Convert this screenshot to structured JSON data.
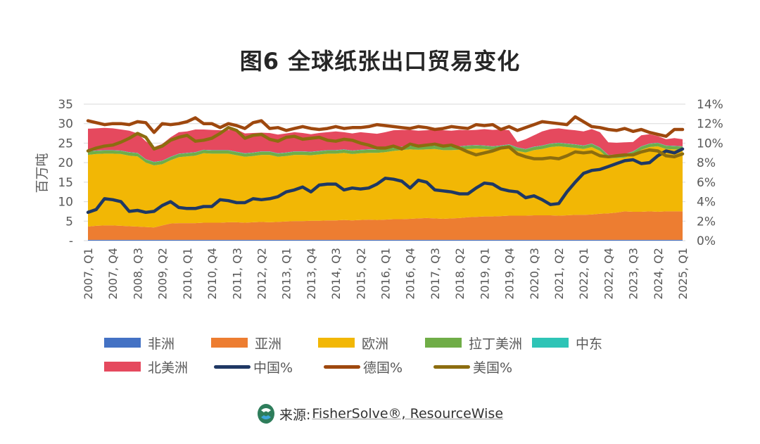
{
  "chart_data": {
    "type": "area",
    "title": "图6  全球纸张出口贸易变化",
    "ylabel": "百万吨",
    "y2label": "",
    "ylim": [
      0,
      35
    ],
    "y2lim": [
      0,
      14
    ],
    "yticks": [
      "-",
      "5",
      "10",
      "15",
      "20",
      "25",
      "30",
      "35"
    ],
    "y2ticks": [
      "0%",
      "2%",
      "4%",
      "6%",
      "8%",
      "10%",
      "12%",
      "14%"
    ],
    "grid": true,
    "legend_position": "bottom",
    "xtick_labels": [
      "2007, Q1",
      "2007, Q4",
      "2008, Q3",
      "2009, Q2",
      "2010, Q1",
      "2010, Q4",
      "2011, Q3",
      "2012, Q2",
      "2013, Q1",
      "2013, Q4",
      "2014, Q3",
      "2015, Q2",
      "2016, Q1",
      "2016, Q4",
      "2017, Q3",
      "2018, Q2",
      "2019, Q1",
      "2019, Q4",
      "2020, Q3",
      "2021, Q2",
      "2022, Q1",
      "2022, Q4",
      "2023, Q3",
      "2024, Q2",
      "2025, Q1"
    ],
    "x_start": "2007, Q1",
    "x_end": "2025, Q1",
    "x_step": "quarter",
    "stacked_series": [
      {
        "name": "非洲",
        "color": "#4472C4",
        "values": [
          0.2,
          0.2,
          0.2,
          0.2,
          0.2,
          0.2,
          0.2,
          0.2,
          0.2,
          0.2,
          0.2,
          0.2,
          0.2,
          0.2,
          0.2,
          0.2,
          0.2,
          0.2,
          0.2,
          0.2,
          0.2,
          0.2,
          0.2,
          0.2,
          0.2,
          0.2,
          0.2,
          0.2,
          0.2,
          0.2,
          0.2,
          0.2,
          0.2,
          0.2,
          0.2,
          0.2,
          0.2,
          0.2,
          0.2,
          0.2,
          0.2,
          0.2,
          0.2,
          0.2,
          0.2,
          0.2,
          0.2,
          0.2,
          0.2,
          0.2,
          0.2,
          0.2,
          0.2,
          0.2,
          0.2,
          0.2,
          0.2,
          0.2,
          0.2,
          0.2,
          0.2,
          0.2,
          0.2,
          0.2,
          0.2,
          0.2,
          0.2,
          0.2,
          0.2,
          0.2,
          0.2,
          0.2,
          0.2
        ]
      },
      {
        "name": "亚洲",
        "color": "#ED7D31",
        "values": [
          3.4,
          3.6,
          3.7,
          3.7,
          3.6,
          3.5,
          3.4,
          3.3,
          3.2,
          3.7,
          4.2,
          4.3,
          4.3,
          4.3,
          4.4,
          4.4,
          4.4,
          4.5,
          4.5,
          4.4,
          4.5,
          4.6,
          4.5,
          4.6,
          4.7,
          4.8,
          4.8,
          4.9,
          4.9,
          5.0,
          5.0,
          5.1,
          5.0,
          5.1,
          5.2,
          5.1,
          5.2,
          5.3,
          5.3,
          5.4,
          5.5,
          5.6,
          5.5,
          5.4,
          5.5,
          5.6,
          5.8,
          5.9,
          6.0,
          6.0,
          6.1,
          6.2,
          6.2,
          6.2,
          6.3,
          6.3,
          6.3,
          6.2,
          6.3,
          6.4,
          6.4,
          6.5,
          6.7,
          6.8,
          7.0,
          7.3,
          7.2,
          7.2,
          7.3,
          7.2,
          7.3,
          7.3,
          7.3
        ]
      },
      {
        "name": "欧洲",
        "color": "#F2B705",
        "values": [
          18.4,
          18.4,
          18.4,
          18.4,
          18.4,
          18.1,
          18.0,
          16.5,
          15.9,
          15.7,
          16.2,
          16.9,
          17.1,
          17.3,
          17.8,
          17.7,
          17.7,
          17.6,
          17.2,
          16.9,
          17.0,
          17.2,
          17.3,
          16.7,
          16.8,
          17.0,
          17.0,
          16.8,
          17.0,
          17.1,
          17.1,
          17.2,
          17.0,
          17.1,
          17.1,
          17.2,
          17.3,
          17.5,
          17.7,
          17.8,
          17.6,
          17.6,
          17.8,
          17.6,
          17.5,
          17.5,
          17.5,
          17.5,
          17.3,
          17.1,
          17.2,
          17.4,
          16.6,
          16.2,
          16.7,
          17.0,
          17.5,
          17.8,
          17.5,
          17.2,
          16.9,
          17.3,
          16.1,
          14.1,
          14.0,
          13.8,
          14.6,
          15.9,
          16.5,
          16.8,
          16.0,
          15.9,
          15.8
        ]
      },
      {
        "name": "拉丁美洲",
        "color": "#70AD47",
        "values": [
          0.8,
          0.8,
          0.8,
          0.8,
          0.8,
          0.8,
          0.8,
          0.8,
          0.8,
          0.8,
          0.8,
          0.8,
          0.8,
          0.8,
          0.8,
          0.8,
          0.8,
          0.8,
          0.8,
          0.8,
          0.8,
          0.8,
          0.8,
          0.8,
          0.8,
          0.8,
          0.8,
          0.8,
          0.8,
          0.8,
          0.8,
          0.8,
          0.8,
          0.8,
          0.8,
          0.8,
          0.8,
          0.8,
          0.8,
          0.8,
          0.8,
          0.8,
          0.8,
          0.8,
          0.8,
          0.8,
          0.8,
          0.8,
          0.8,
          0.8,
          0.8,
          0.8,
          0.8,
          0.8,
          0.8,
          0.8,
          0.8,
          0.8,
          0.8,
          0.8,
          0.8,
          0.8,
          0.8,
          0.8,
          0.8,
          0.8,
          0.8,
          0.8,
          0.8,
          0.8,
          0.8,
          0.8,
          0.8
        ]
      },
      {
        "name": "中东",
        "color": "#2EC4B6",
        "values": [
          0.1,
          0.1,
          0.1,
          0.1,
          0.1,
          0.1,
          0.1,
          0.1,
          0.1,
          0.1,
          0.1,
          0.1,
          0.1,
          0.1,
          0.1,
          0.1,
          0.1,
          0.1,
          0.1,
          0.1,
          0.1,
          0.1,
          0.1,
          0.1,
          0.1,
          0.1,
          0.1,
          0.1,
          0.1,
          0.1,
          0.1,
          0.1,
          0.1,
          0.1,
          0.1,
          0.1,
          0.1,
          0.1,
          0.1,
          0.1,
          0.1,
          0.1,
          0.1,
          0.1,
          0.1,
          0.1,
          0.1,
          0.1,
          0.1,
          0.1,
          0.1,
          0.1,
          0.1,
          0.1,
          0.1,
          0.1,
          0.1,
          0.1,
          0.1,
          0.1,
          0.1,
          0.1,
          0.1,
          0.1,
          0.1,
          0.1,
          0.1,
          0.1,
          0.1,
          0.1,
          0.1,
          0.1,
          0.1
        ]
      },
      {
        "name": "北美洲",
        "color": "#E5495E",
        "values": [
          5.8,
          5.7,
          5.7,
          5.6,
          5.4,
          5.5,
          5.0,
          4.6,
          3.8,
          4.3,
          5.0,
          5.5,
          5.5,
          5.8,
          5.2,
          5.2,
          5.1,
          5.2,
          5.7,
          5.1,
          5.0,
          4.8,
          4.7,
          4.8,
          4.9,
          4.9,
          4.7,
          4.5,
          4.6,
          4.6,
          4.8,
          4.4,
          4.4,
          4.5,
          4.2,
          4.0,
          4.2,
          4.4,
          4.3,
          4.1,
          4.0,
          4.0,
          4.1,
          4.2,
          4.1,
          4.2,
          3.9,
          3.9,
          4.2,
          4.2,
          4.1,
          3.6,
          1.4,
          2.5,
          2.9,
          3.6,
          3.7,
          3.7,
          3.6,
          3.6,
          3.6,
          3.7,
          3.9,
          3.2,
          3.0,
          3.0,
          2.4,
          2.8,
          2.4,
          1.7,
          1.6,
          2.0,
          1.8
        ]
      }
    ],
    "line_series": [
      {
        "name": "中国%",
        "color": "#1F3864",
        "axis": "right",
        "values": [
          2.9,
          3.2,
          4.3,
          4.2,
          4.0,
          3.0,
          3.1,
          2.9,
          3.0,
          3.6,
          4.0,
          3.4,
          3.3,
          3.3,
          3.5,
          3.5,
          4.2,
          4.1,
          3.9,
          3.9,
          4.3,
          4.2,
          4.3,
          4.5,
          5.0,
          5.2,
          5.5,
          5.0,
          5.7,
          5.8,
          5.8,
          5.2,
          5.4,
          5.3,
          5.4,
          5.8,
          6.4,
          6.3,
          6.1,
          5.4,
          6.2,
          6.0,
          5.2,
          5.1,
          5.0,
          4.8,
          4.8,
          5.4,
          5.9,
          5.8,
          5.3,
          5.1,
          5.0,
          4.4,
          4.6,
          4.2,
          3.7,
          3.8,
          5.0,
          6.0,
          6.9,
          7.2,
          7.3,
          7.6,
          7.9,
          8.2,
          8.3,
          7.9,
          8.0,
          8.7,
          9.2,
          9.0,
          9.4
        ]
      },
      {
        "name": "德国%",
        "color": "#9E480E",
        "axis": "right",
        "values": [
          12.3,
          12.1,
          11.9,
          12.0,
          12.0,
          11.9,
          12.2,
          12.1,
          11.1,
          12.0,
          11.9,
          12.0,
          12.2,
          12.6,
          12.0,
          12.0,
          11.6,
          12.0,
          11.8,
          11.5,
          12.1,
          12.3,
          11.5,
          11.6,
          11.3,
          11.5,
          11.7,
          11.5,
          11.4,
          11.5,
          11.7,
          11.5,
          11.6,
          11.6,
          11.7,
          11.9,
          11.8,
          11.7,
          11.6,
          11.5,
          11.7,
          11.6,
          11.4,
          11.5,
          11.7,
          11.6,
          11.5,
          11.9,
          11.8,
          11.9,
          11.4,
          11.7,
          11.3,
          11.6,
          11.9,
          12.2,
          12.1,
          12.0,
          11.9,
          12.7,
          12.2,
          11.7,
          11.6,
          11.4,
          11.3,
          11.5,
          11.2,
          11.4,
          11.1,
          10.9,
          10.7,
          11.4,
          11.4
        ]
      },
      {
        "name": "美国%",
        "color": "#8C6D0F",
        "axis": "right",
        "values": [
          9.2,
          9.5,
          9.7,
          9.8,
          10.1,
          10.5,
          11.0,
          10.6,
          9.4,
          9.7,
          10.3,
          10.6,
          10.8,
          10.2,
          10.3,
          10.5,
          11.0,
          11.6,
          11.3,
          10.5,
          10.8,
          10.9,
          10.4,
          10.2,
          10.6,
          10.7,
          10.4,
          10.5,
          10.6,
          10.3,
          10.2,
          10.4,
          10.3,
          10.0,
          9.8,
          9.5,
          9.5,
          9.7,
          9.4,
          9.9,
          9.7,
          9.8,
          9.9,
          9.7,
          9.8,
          9.5,
          9.1,
          8.8,
          9.0,
          9.2,
          9.5,
          9.6,
          8.9,
          8.6,
          8.4,
          8.4,
          8.5,
          8.4,
          8.7,
          9.1,
          9.0,
          9.1,
          8.7,
          8.6,
          8.7,
          8.8,
          8.8,
          9.1,
          9.3,
          9.2,
          8.7,
          8.6,
          8.9
        ]
      }
    ]
  },
  "source": {
    "label": "来源:",
    "text": "FisherSolve®, ResourceWise"
  }
}
